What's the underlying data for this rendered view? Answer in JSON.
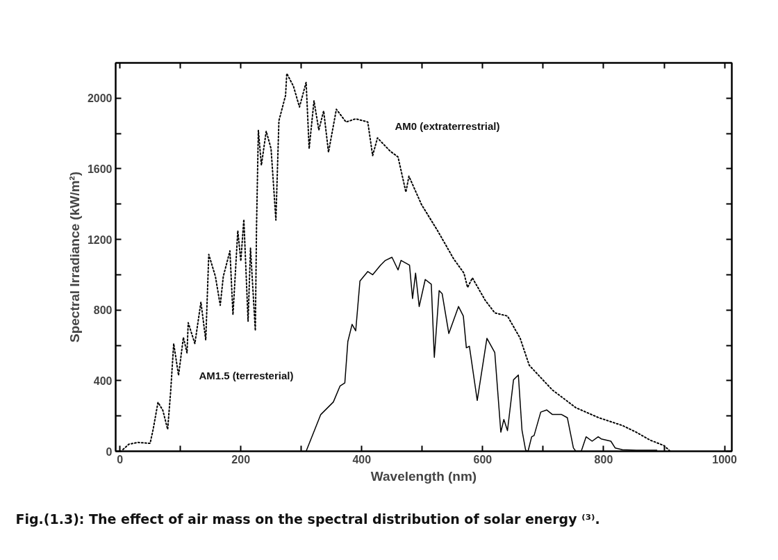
{
  "chart_data": {
    "type": "line",
    "xlabel": "Wavelength (nm)",
    "ylabel": "Spectral Irradiance (kW/m²)",
    "xlim": [
      -7,
      1012
    ],
    "ylim": [
      0,
      2200
    ],
    "xticks": [
      0,
      {
        "value": 100,
        "label": null
      },
      200,
      {
        "value": 300,
        "label": null
      },
      400,
      {
        "value": 500,
        "label": null
      },
      600,
      {
        "value": 700,
        "label": null
      },
      800,
      {
        "value": 900,
        "label": null
      },
      1000
    ],
    "yticks": [
      0,
      {
        "value": 200,
        "label": null
      },
      400,
      {
        "value": 600,
        "label": null
      },
      800,
      {
        "value": 1000,
        "label": null
      },
      1200,
      {
        "value": 1400,
        "label": null
      },
      1600,
      {
        "value": 1800,
        "label": null
      },
      2000
    ],
    "grid": false,
    "marker": "none",
    "series": [
      {
        "color": "#000000",
        "line_style": "dotted",
        "x": [
          5,
          15,
          30,
          50,
          55,
          63,
          71,
          79,
          84,
          89,
          97,
          105,
          111,
          113,
          124,
          134,
          142,
          147,
          158,
          166,
          171,
          182,
          187,
          195,
          200,
          205,
          212,
          216,
          224,
          226,
          229,
          234,
          242,
          250,
          258,
          263,
          274,
          276,
          287,
          297,
          308,
          313,
          321,
          329,
          337,
          345,
          358,
          374,
          390,
          410,
          418,
          426,
          447,
          460,
          473,
          478,
          499,
          525,
          552,
          569,
          575,
          583,
          604,
          620,
          641,
          662,
          677,
          715,
          754,
          792,
          831,
          854,
          877,
          900,
          910
        ],
        "values": [
          10,
          40,
          50,
          45,
          124,
          277,
          232,
          124,
          340,
          610,
          430,
          645,
          557,
          728,
          610,
          845,
          630,
          1115,
          990,
          827,
          990,
          1135,
          773,
          1250,
          1077,
          1313,
          737,
          1150,
          683,
          1277,
          1818,
          1620,
          1813,
          1714,
          1310,
          1872,
          2016,
          2140,
          2068,
          1950,
          2090,
          1714,
          1985,
          1820,
          1928,
          1694,
          1937,
          1865,
          1883,
          1865,
          1675,
          1775,
          1700,
          1667,
          1468,
          1558,
          1396,
          1252,
          1090,
          1009,
          928,
          982,
          856,
          784,
          766,
          640,
          487,
          348,
          247,
          190,
          146,
          108,
          63,
          32,
          0
        ]
      },
      {
        "color": "#000000",
        "line_style": "solid",
        "x": [
          308,
          332,
          353,
          364,
          372,
          377,
          384,
          390,
          397,
          410,
          418,
          431,
          439,
          450,
          460,
          465,
          479,
          484,
          489,
          495,
          505,
          515,
          520,
          528,
          533,
          544,
          560,
          568,
          573,
          578,
          591,
          607,
          620,
          630,
          635,
          641,
          651,
          659,
          665,
          671,
          675,
          681,
          685,
          696,
          706,
          715,
          730,
          740,
          750,
          754,
          763,
          771,
          781,
          791,
          796,
          812,
          819,
          831,
          854,
          888
        ],
        "values": [
          0,
          207,
          279,
          369,
          387,
          622,
          719,
          682,
          964,
          1018,
          1000,
          1054,
          1081,
          1099,
          1027,
          1081,
          1054,
          865,
          1009,
          820,
          973,
          946,
          532,
          910,
          892,
          667,
          820,
          766,
          586,
          595,
          288,
          640,
          559,
          108,
          180,
          117,
          405,
          432,
          120,
          6,
          0,
          82,
          89,
          222,
          234,
          209,
          209,
          190,
          19,
          0,
          0,
          82,
          57,
          82,
          70,
          57,
          19,
          9,
          6,
          6
        ]
      }
    ],
    "annotations": [
      "AM0 (extraterrestrial)",
      "AM1.5 (terresterial)",
      "Fig.(1.3): The effect of air mass on the spectral distribution of solar energy ⁽³⁾."
    ]
  }
}
